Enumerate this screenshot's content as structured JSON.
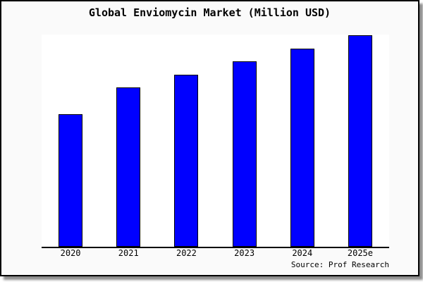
{
  "window": {
    "canvas_background": "#fafafa",
    "border_color": "#000000",
    "plot_background": "#ffffff"
  },
  "chart": {
    "title": "Global Enviomycin Market (Million USD)",
    "source": "Source: Prof Research"
  },
  "chart_data": {
    "type": "bar",
    "title": "Global Enviomycin Market (Million USD)",
    "categories": [
      "2020",
      "2021",
      "2022",
      "2023",
      "2024",
      "2025e"
    ],
    "values": [
      62.7,
      75.3,
      81.3,
      87.7,
      93.7,
      100
    ],
    "values_note": "no y-axis scale shown in chart; values are relative bar heights indexed to 2025e = 100",
    "xlabel": "",
    "ylabel": "",
    "ylim": [
      0,
      100.7
    ],
    "gridlines": false,
    "legend": "none",
    "y_axis_ticks_visible": false,
    "bar_color": "#0000ff",
    "bar_border_color": "#000000",
    "axis_line_color": "#000000",
    "annotations": [
      "Source: Prof Research"
    ]
  }
}
